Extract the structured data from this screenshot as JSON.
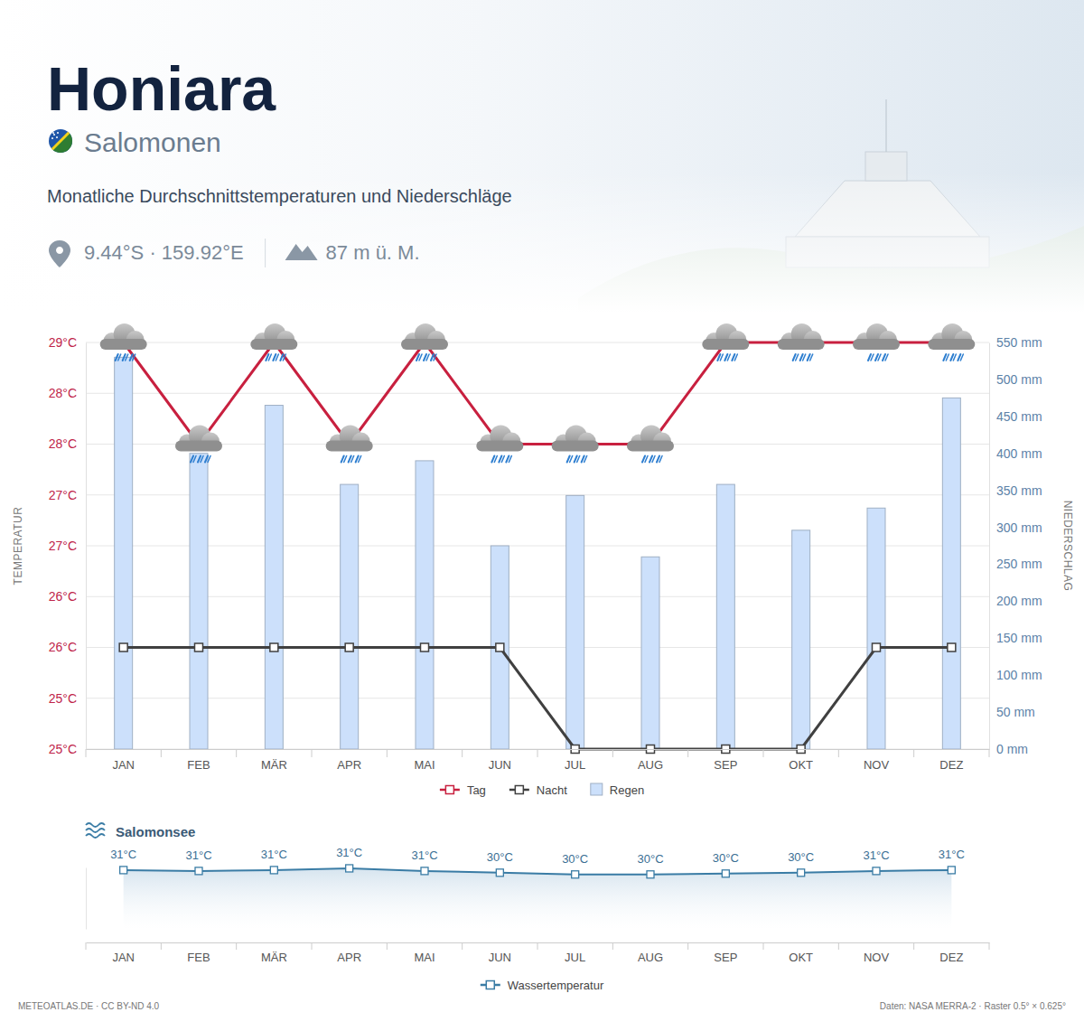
{
  "header": {
    "title": "Honiara",
    "country": "Salomonen",
    "subtitle": "Monatliche Durchschnittstemperaturen und Niederschläge",
    "coordinates": "9.44°S · 159.92°E",
    "elevation": "87 m ü. M."
  },
  "footer": {
    "source_left": "METEOATLAS.DE · CC BY-ND 4.0",
    "source_right": "Daten: NASA MERRA-2 · Raster 0.5° × 0.625°"
  },
  "chart_data": [
    {
      "type": "bar",
      "categories": [
        "JAN",
        "FEB",
        "MÄR",
        "APR",
        "MAI",
        "JUN",
        "JUL",
        "AUG",
        "SEP",
        "OKT",
        "NOV",
        "DEZ"
      ],
      "series": [
        {
          "name": "Tag",
          "type": "line",
          "color": "#c8203f",
          "marker": "square",
          "values": [
            29,
            28,
            29,
            28,
            29,
            28,
            28,
            28,
            29,
            29,
            29,
            29
          ]
        },
        {
          "name": "Nacht",
          "type": "line",
          "color": "#404040",
          "marker": "square",
          "values": [
            26,
            26,
            26,
            26,
            26,
            26,
            25,
            25,
            25,
            25,
            26,
            26
          ]
        },
        {
          "name": "Regen",
          "type": "bar",
          "axis": "y2",
          "color": "#cce0fb",
          "values": [
            530,
            400,
            465,
            358,
            390,
            275,
            343,
            260,
            358,
            296,
            326,
            475
          ]
        }
      ],
      "ylim": [
        25,
        29
      ],
      "yticks": [
        {
          "value": 25,
          "label": "25°C"
        },
        {
          "value": 25.5,
          "label": "25°C"
        },
        {
          "value": 26,
          "label": "26°C"
        },
        {
          "value": 26.5,
          "label": "26°C"
        },
        {
          "value": 27,
          "label": "27°C"
        },
        {
          "value": 27.5,
          "label": "27°C"
        },
        {
          "value": 28,
          "label": "28°C"
        },
        {
          "value": 28.5,
          "label": "28°C"
        },
        {
          "value": 29,
          "label": "29°C"
        }
      ],
      "y2lim": [
        0,
        550
      ],
      "y2ticks": [
        {
          "value": 0,
          "label": "0 mm"
        },
        {
          "value": 50,
          "label": "50 mm"
        },
        {
          "value": 100,
          "label": "100 mm"
        },
        {
          "value": 150,
          "label": "150 mm"
        },
        {
          "value": 200,
          "label": "200 mm"
        },
        {
          "value": 250,
          "label": "250 mm"
        },
        {
          "value": 300,
          "label": "300 mm"
        },
        {
          "value": 350,
          "label": "350 mm"
        },
        {
          "value": 400,
          "label": "400 mm"
        },
        {
          "value": 450,
          "label": "450 mm"
        },
        {
          "value": 500,
          "label": "500 mm"
        },
        {
          "value": 550,
          "label": "550 mm"
        }
      ],
      "ylabel": "TEMPERATUR",
      "y2label": "NIEDERSCHLAG",
      "grid": true,
      "legend": "bottom"
    },
    {
      "type": "line",
      "title": "Salomonsee",
      "categories": [
        "JAN",
        "FEB",
        "MÄR",
        "APR",
        "MAI",
        "JUN",
        "JUL",
        "AUG",
        "SEP",
        "OKT",
        "NOV",
        "DEZ"
      ],
      "series": [
        {
          "name": "Wassertemperatur",
          "color": "#3a7ca5",
          "marker": "square",
          "values": [
            30.7,
            30.6,
            30.7,
            30.9,
            30.6,
            30.4,
            30.2,
            30.2,
            30.3,
            30.4,
            30.6,
            30.7
          ],
          "value_labels": [
            "31°C",
            "31°C",
            "31°C",
            "31°C",
            "31°C",
            "30°C",
            "30°C",
            "30°C",
            "30°C",
            "30°C",
            "31°C",
            "31°C"
          ]
        }
      ],
      "ylim": [
        24,
        31
      ],
      "data_labels": true,
      "tick_labels": "x",
      "legend": "bottom"
    }
  ]
}
